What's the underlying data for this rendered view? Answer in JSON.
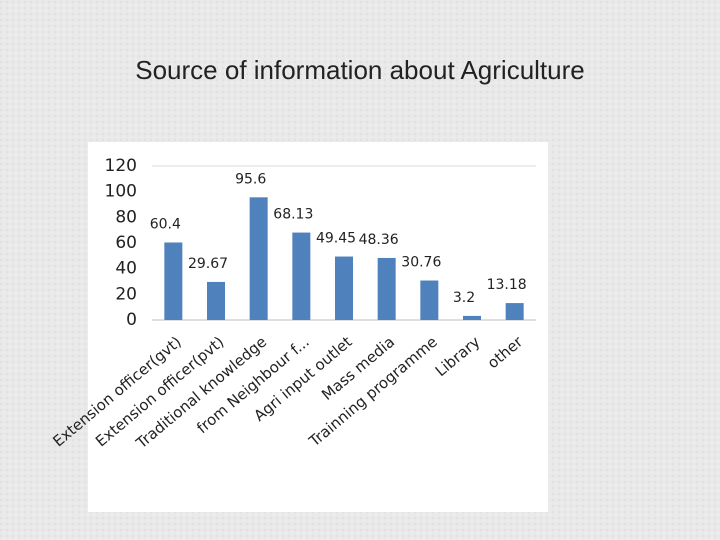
{
  "chart_data": {
    "type": "bar",
    "title": "Source of information about Agriculture",
    "categories": [
      "Extension officer(gvt)",
      "Extension officer(pvt)",
      "Traditional knowledge",
      "from Neighbour f...",
      "Agri input outlet",
      "Mass media",
      "Trainning programme",
      "Library",
      "other"
    ],
    "values": [
      60.4,
      29.67,
      95.6,
      68.13,
      49.45,
      48.36,
      30.76,
      3.2,
      13.18
    ],
    "color": "#4f81bd",
    "ylim": [
      0,
      120
    ],
    "yticks": [
      0,
      20,
      40,
      60,
      80,
      100,
      120
    ],
    "grid": false
  }
}
